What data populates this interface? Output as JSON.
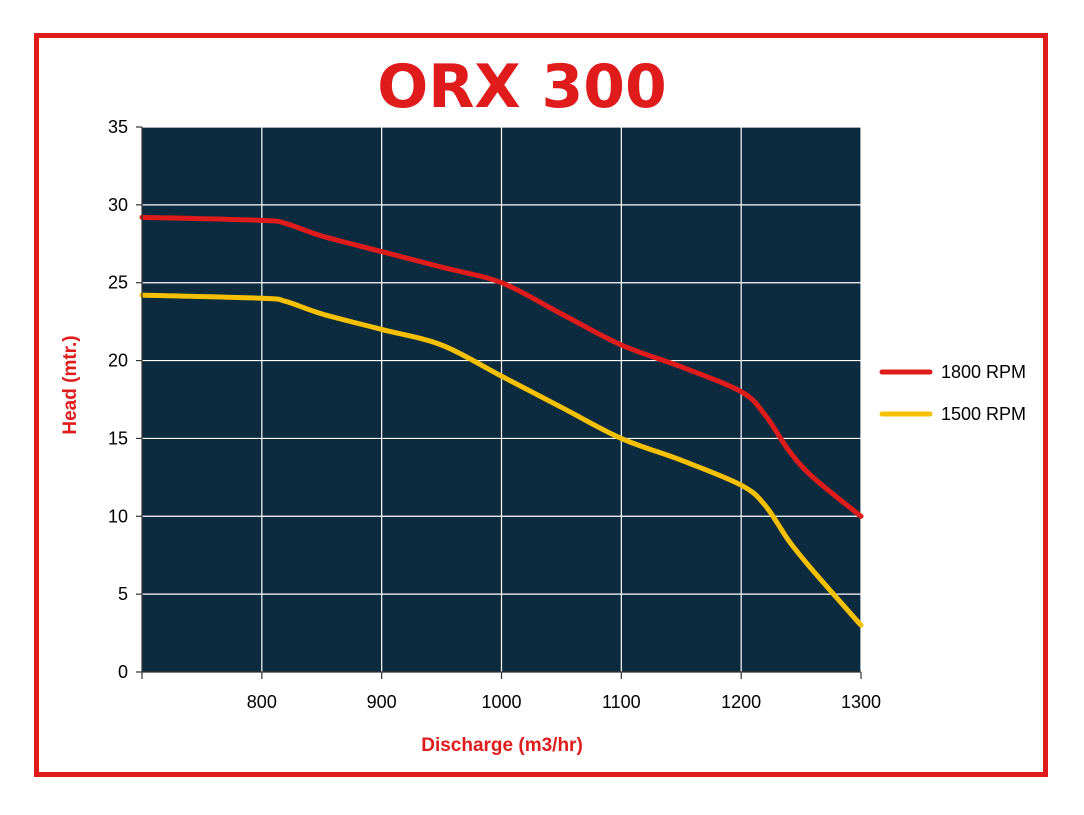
{
  "chart_data": {
    "type": "line",
    "title": "ORX 300",
    "xlabel": "Discharge (m3/hr)",
    "ylabel": "Head (mtr.)",
    "xlim": [
      700,
      1300
    ],
    "ylim": [
      0,
      35
    ],
    "x_ticks": [
      800,
      900,
      1000,
      1100,
      1200,
      1300
    ],
    "y_ticks": [
      0,
      5,
      10,
      15,
      20,
      25,
      30,
      35
    ],
    "grid": true,
    "legend_position": "right",
    "colors": {
      "frame": "#e01b1b",
      "plot_bg": "#0d2b3e",
      "grid": "#ffffff",
      "title": "#e01b1b",
      "axis_label": "#e01b1b",
      "tick": "#000000"
    },
    "series": [
      {
        "name": "1800 RPM",
        "color": "#e01b1b",
        "x": [
          700,
          800,
          820,
          850,
          900,
          950,
          1000,
          1050,
          1100,
          1150,
          1200,
          1220,
          1240,
          1260,
          1300
        ],
        "y": [
          29.2,
          29.0,
          28.8,
          28.0,
          27.0,
          26.0,
          25.0,
          23.0,
          21.0,
          19.6,
          18.0,
          16.5,
          14.2,
          12.5,
          10.0
        ]
      },
      {
        "name": "1500 RPM",
        "color": "#f5c000",
        "x": [
          700,
          800,
          820,
          850,
          900,
          950,
          1000,
          1050,
          1100,
          1150,
          1200,
          1220,
          1240,
          1260,
          1300
        ],
        "y": [
          24.2,
          24.0,
          23.8,
          23.0,
          22.0,
          21.0,
          19.0,
          17.0,
          15.0,
          13.6,
          12.0,
          10.7,
          8.4,
          6.5,
          3.0
        ]
      }
    ]
  }
}
